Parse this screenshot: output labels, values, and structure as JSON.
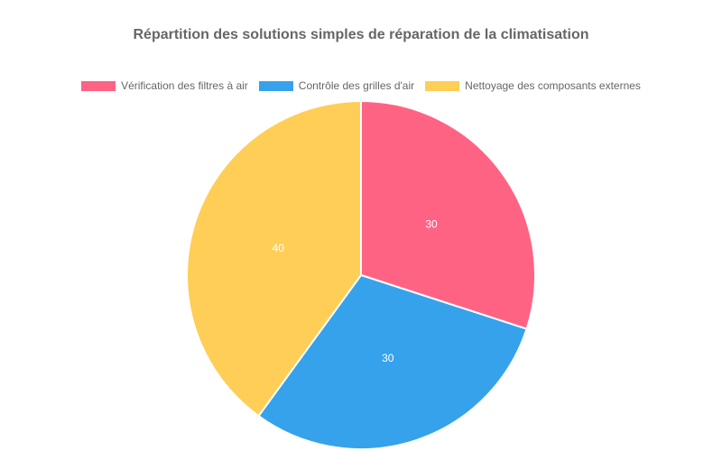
{
  "chart_data": {
    "type": "pie",
    "title": "Répartition des solutions simples de réparation de la climatisation",
    "categories": [
      "Vérification des filtres à air",
      "Contrôle des grilles d'air",
      "Nettoyage des composants externes"
    ],
    "values": [
      30,
      30,
      40
    ],
    "colors": [
      "#ff6384",
      "#36a2eb",
      "#ffce56"
    ],
    "legend_position": "top",
    "data_labels": [
      "30",
      "30",
      "40"
    ]
  }
}
